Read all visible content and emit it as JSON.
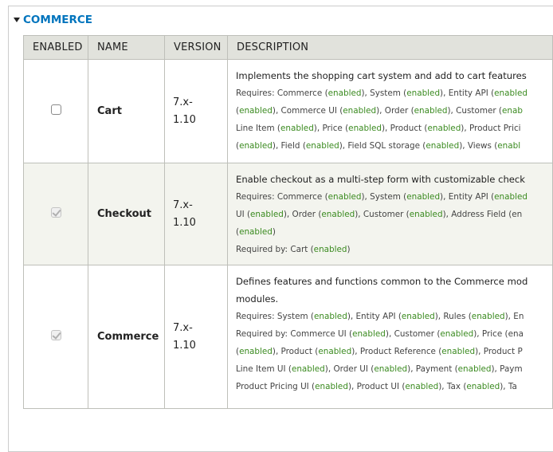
{
  "section": {
    "title": "COMMERCE"
  },
  "columns": [
    "ENABLED",
    "NAME",
    "VERSION",
    "DESCRIPTION"
  ],
  "colors": {
    "link": "#0074bd",
    "enabled": "#3a8a1f",
    "header_bg": "#e1e2dc"
  },
  "rows": [
    {
      "name": "Cart",
      "enabled": false,
      "disabled": false,
      "version": [
        "7.x-",
        "1.10"
      ],
      "description": [
        "Implements the shopping cart system and add to cart features"
      ],
      "details": [
        "Requires: Commerce (enabled), System (enabled), Entity API (enabled",
        "(enabled), Commerce UI (enabled), Order (enabled), Customer (enab",
        "Line Item (enabled), Price (enabled), Product (enabled), Product Prici",
        "(enabled), Field (enabled), Field SQL storage (enabled), Views (enabl"
      ]
    },
    {
      "name": "Checkout",
      "enabled": true,
      "disabled": true,
      "version": [
        "7.x-",
        "1.10"
      ],
      "description": [
        "Enable checkout as a multi-step form with customizable check"
      ],
      "details": [
        "Requires: Commerce (enabled), System (enabled), Entity API (enabled",
        "UI (enabled), Order (enabled), Customer (enabled), Address Field (en",
        "(enabled)",
        "Required by: Cart (enabled)"
      ]
    },
    {
      "name": "Commerce",
      "enabled": true,
      "disabled": true,
      "version": [
        "7.x-",
        "1.10"
      ],
      "description": [
        "Defines features and functions common to the Commerce mod",
        "modules."
      ],
      "details": [
        "Requires: System (enabled), Entity API (enabled), Rules (enabled), En",
        "Required by: Commerce UI (enabled), Customer (enabled), Price (ena",
        "(enabled), Product (enabled), Product Reference (enabled), Product P",
        "Line Item UI (enabled), Order UI (enabled), Payment (enabled), Paym",
        "Product Pricing UI (enabled), Product UI (enabled), Tax (enabled), Ta"
      ]
    }
  ]
}
